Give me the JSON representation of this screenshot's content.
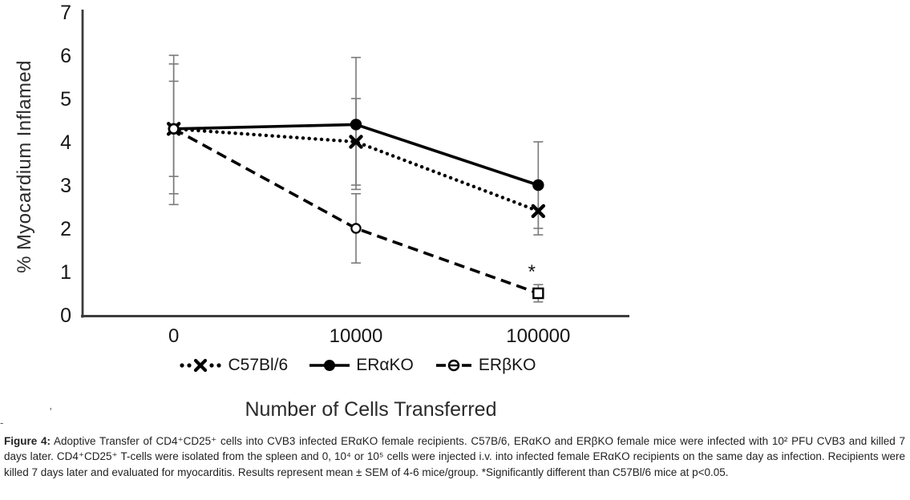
{
  "chart_data": {
    "type": "line",
    "title": "",
    "xlabel": "Number of Cells Transferred",
    "ylabel": "% Myocardium Inflamed",
    "categories": [
      "0",
      "10000",
      "100000"
    ],
    "ylim": [
      0,
      7
    ],
    "yticks": [
      0,
      1,
      2,
      3,
      4,
      5,
      6,
      7
    ],
    "grid": false,
    "legend_position": "bottom",
    "error_bars": "SEM",
    "series": [
      {
        "name": "C57Bl/6",
        "line_style": "dotted",
        "marker": "x",
        "values": [
          4.3,
          4.0,
          2.4
        ],
        "err_lo": [
          2.8,
          3.0,
          1.85
        ],
        "err_hi": [
          5.8,
          5.0,
          2.95
        ]
      },
      {
        "name": "ERαKO",
        "line_style": "solid",
        "marker": "circle-filled",
        "values": [
          4.3,
          4.4,
          3.0
        ],
        "err_lo": [
          2.55,
          2.9,
          2.0
        ],
        "err_hi": [
          6.0,
          5.95,
          4.0
        ]
      },
      {
        "name": "ERβKO",
        "line_style": "dashed",
        "marker": "circle-open",
        "markers": [
          "circle-open",
          "circle-open",
          "square-open"
        ],
        "values": [
          4.3,
          2.0,
          0.5
        ],
        "err_lo": [
          3.2,
          1.2,
          0.3
        ],
        "err_hi": [
          5.4,
          2.8,
          0.7
        ]
      }
    ],
    "annotations": [
      {
        "text": "*",
        "category_index": 2,
        "value": 1.02
      }
    ]
  },
  "caption": {
    "label": "Figure 4:",
    "text": "Adoptive Transfer of CD4⁺CD25⁺ cells into CVB3 infected ERαKO female recipients. C57B/6, ERαKO and ERβKO female mice were infected with 10² PFU CVB3 and killed 7 days later. CD4⁺CD25⁺ T-cells were isolated from the spleen and 0, 10⁴ or 10⁵ cells were injected i.v. into infected female ERαKO recipients on the same day as infection. Recipients were killed 7 days later and evaluated for myocarditis. Results represent mean ± SEM of 4-6 mice/group. *Significantly different than C57Bl/6 mice at p<0.05."
  },
  "artifacts": [
    "'",
    "-"
  ]
}
